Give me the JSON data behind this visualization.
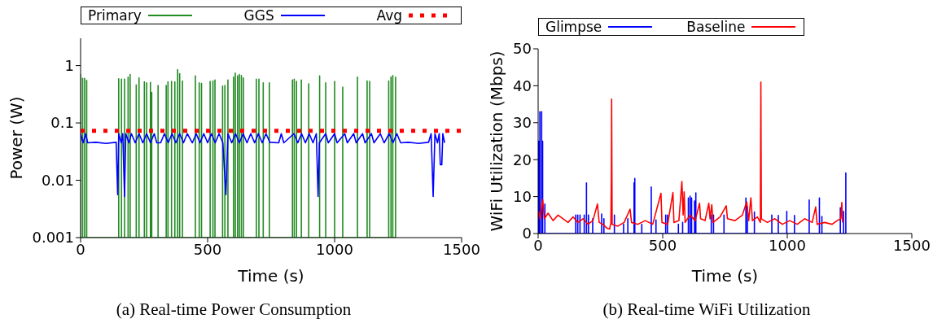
{
  "chart_data": [
    {
      "type": "line",
      "title": "(a) Real-time Power Consumption",
      "xlabel": "Time (s)",
      "ylabel": "Power (W)",
      "log": "y",
      "xlim": [
        0,
        1500
      ],
      "xticks": [
        0,
        500,
        1000,
        1500
      ],
      "ylim": [
        0.001,
        3
      ],
      "yticks": [
        0.001,
        0.01,
        0.1,
        1
      ],
      "legend": "top",
      "ref_lines": [
        {
          "axis": "y",
          "value": 0.073,
          "label": "Avg",
          "color": "#ff0000",
          "line_style": "dotted"
        }
      ],
      "series": [
        {
          "name": "Primary",
          "color": "#228b22",
          "x": [
            0,
            0,
            0,
            8,
            8,
            8,
            16,
            16,
            16,
            24,
            24,
            24,
            150,
            150,
            150,
            161,
            161,
            161,
            173,
            173,
            173,
            187,
            187,
            187,
            195,
            195,
            195,
            219,
            219,
            219,
            230,
            230,
            230,
            251,
            251,
            251,
            260,
            260,
            260,
            275,
            275,
            275,
            280,
            280,
            280,
            305,
            305,
            305,
            337,
            337,
            337,
            344,
            344,
            344,
            358,
            358,
            358,
            371,
            371,
            371,
            382,
            382,
            382,
            390,
            390,
            390,
            401,
            401,
            401,
            452,
            452,
            452,
            467,
            467,
            467,
            476,
            476,
            476,
            510,
            510,
            510,
            521,
            521,
            521,
            529,
            529,
            529,
            559,
            559,
            559,
            568,
            568,
            568,
            580,
            580,
            580,
            602,
            602,
            602,
            609,
            609,
            609,
            618,
            618,
            618,
            625,
            625,
            625,
            633,
            633,
            633,
            641,
            641,
            641,
            692,
            692,
            692,
            702,
            702,
            702,
            719,
            719,
            719,
            743,
            743,
            743,
            834,
            834,
            834,
            841,
            841,
            841,
            850,
            850,
            850,
            869,
            869,
            869,
            898,
            898,
            898,
            941,
            941,
            941,
            965,
            965,
            965,
            1000,
            1000,
            1000,
            1032,
            1032,
            1032,
            1090,
            1090,
            1090,
            1128,
            1128,
            1128,
            1138,
            1138,
            1138,
            1213,
            1213,
            1213,
            1222,
            1222,
            1222,
            1229,
            1229,
            1229,
            1240,
            1240,
            1240
          ],
          "values": [
            0.001,
            0.7,
            0.001,
            0.001,
            0.6,
            0.001,
            0.001,
            0.6,
            0.001,
            0.001,
            0.55,
            0.001,
            0.001,
            0.59,
            0.001,
            0.001,
            0.58,
            0.001,
            0.001,
            0.58,
            0.001,
            0.001,
            0.63,
            0.001,
            0.001,
            0.7,
            0.001,
            0.001,
            0.46,
            0.001,
            0.001,
            0.61,
            0.001,
            0.001,
            0.52,
            0.001,
            0.001,
            0.5,
            0.001,
            0.001,
            0.51,
            0.001,
            0.001,
            0.34,
            0.001,
            0.001,
            0.45,
            0.001,
            0.001,
            0.45,
            0.001,
            0.001,
            0.52,
            0.001,
            0.001,
            0.53,
            0.001,
            0.001,
            0.52,
            0.001,
            0.001,
            0.85,
            0.001,
            0.001,
            0.72,
            0.001,
            0.001,
            0.54,
            0.001,
            0.001,
            0.66,
            0.001,
            0.001,
            0.5,
            0.001,
            0.001,
            0.49,
            0.001,
            0.001,
            0.53,
            0.001,
            0.001,
            0.54,
            0.001,
            0.001,
            0.56,
            0.001,
            0.001,
            0.44,
            0.001,
            0.001,
            0.45,
            0.001,
            0.001,
            0.56,
            0.001,
            0.001,
            0.63,
            0.001,
            0.001,
            0.74,
            0.001,
            0.001,
            0.66,
            0.001,
            0.001,
            0.7,
            0.001,
            0.001,
            0.67,
            0.001,
            0.001,
            0.61,
            0.001,
            0.001,
            0.58,
            0.001,
            0.001,
            0.58,
            0.001,
            0.001,
            0.5,
            0.001,
            0.001,
            0.5,
            0.001,
            0.001,
            0.56,
            0.001,
            0.001,
            0.58,
            0.001,
            0.001,
            0.53,
            0.001,
            0.001,
            0.56,
            0.001,
            0.001,
            0.48,
            0.001,
            0.001,
            0.66,
            0.001,
            0.001,
            0.5,
            0.001,
            0.001,
            0.53,
            0.001,
            0.001,
            0.42,
            0.001,
            0.001,
            0.63,
            0.001,
            0.001,
            0.54,
            0.001,
            0.001,
            0.53,
            0.001,
            0.001,
            0.54,
            0.001,
            0.001,
            0.63,
            0.001,
            0.001,
            0.67,
            0.001,
            0.001,
            0.63,
            0.001
          ]
        },
        {
          "name": "GGS",
          "color": "#0000ff",
          "x": [
            0,
            10,
            20,
            28,
            60,
            100,
            140,
            146,
            150,
            160,
            166,
            173,
            178,
            190,
            200,
            215,
            230,
            245,
            260,
            275,
            290,
            300,
            315,
            330,
            345,
            360,
            375,
            390,
            405,
            420,
            440,
            455,
            470,
            485,
            500,
            515,
            530,
            545,
            560,
            572,
            580,
            595,
            610,
            625,
            640,
            655,
            670,
            685,
            700,
            715,
            730,
            745,
            780,
            790,
            800,
            840,
            855,
            870,
            885,
            900,
            915,
            928,
            935,
            940,
            965,
            975,
            1000,
            1010,
            1040,
            1050,
            1075,
            1085,
            1110,
            1120,
            1145,
            1155,
            1180,
            1195,
            1215,
            1230,
            1245,
            1260,
            1290,
            1330,
            1370,
            1380,
            1388,
            1395,
            1405,
            1412,
            1416,
            1422,
            1426,
            1433
          ],
          "values": [
            0.065,
            0.045,
            0.065,
            0.045,
            0.046,
            0.044,
            0.046,
            0.0056,
            0.065,
            0.045,
            0.065,
            0.0052,
            0.065,
            0.045,
            0.065,
            0.045,
            0.065,
            0.045,
            0.065,
            0.045,
            0.065,
            0.045,
            0.045,
            0.065,
            0.045,
            0.065,
            0.045,
            0.065,
            0.045,
            0.065,
            0.045,
            0.065,
            0.045,
            0.065,
            0.045,
            0.065,
            0.045,
            0.065,
            0.045,
            0.0056,
            0.065,
            0.045,
            0.065,
            0.045,
            0.065,
            0.045,
            0.065,
            0.045,
            0.065,
            0.045,
            0.065,
            0.046,
            0.045,
            0.065,
            0.045,
            0.065,
            0.045,
            0.065,
            0.045,
            0.065,
            0.045,
            0.065,
            0.0052,
            0.045,
            0.065,
            0.045,
            0.065,
            0.045,
            0.065,
            0.045,
            0.065,
            0.045,
            0.065,
            0.045,
            0.065,
            0.045,
            0.065,
            0.045,
            0.065,
            0.045,
            0.065,
            0.045,
            0.046,
            0.044,
            0.046,
            0.065,
            0.0052,
            0.065,
            0.045,
            0.065,
            0.0187,
            0.0187,
            0.065,
            0.045
          ]
        }
      ]
    },
    {
      "type": "line",
      "title": "(b) Real-time WiFi Utilization",
      "xlabel": "Time (s)",
      "ylabel": "WiFi Utilization (Mbps)",
      "xlim": [
        0,
        1500
      ],
      "xticks": [
        0,
        500,
        1000,
        1500
      ],
      "ylim": [
        0,
        50
      ],
      "yticks": [
        0,
        10,
        20,
        30,
        40,
        50
      ],
      "legend": "top left",
      "series": [
        {
          "name": "Glimpse",
          "color": "#0000ff",
          "x": [
            2,
            2,
            2,
            7,
            7,
            7,
            14,
            14,
            14,
            18,
            18,
            18,
            27,
            27,
            27,
            151,
            151,
            151,
            159,
            159,
            159,
            168,
            168,
            168,
            185,
            185,
            185,
            194,
            194,
            194,
            202,
            202,
            202,
            219,
            219,
            219,
            255,
            255,
            255,
            264,
            264,
            264,
            306,
            306,
            306,
            343,
            343,
            343,
            360,
            360,
            360,
            385,
            385,
            385,
            388,
            388,
            388,
            416,
            416,
            416,
            454,
            454,
            454,
            473,
            473,
            473,
            512,
            512,
            512,
            519,
            519,
            519,
            563,
            563,
            563,
            580,
            580,
            580,
            603,
            603,
            603,
            610,
            610,
            610,
            616,
            616,
            616,
            628,
            628,
            628,
            633,
            633,
            633,
            695,
            695,
            695,
            704,
            704,
            704,
            746,
            746,
            746,
            834,
            834,
            834,
            840,
            840,
            840,
            868,
            868,
            868,
            938,
            938,
            938,
            964,
            964,
            964,
            998,
            998,
            998,
            1029,
            1029,
            1029,
            1088,
            1088,
            1088,
            1129,
            1129,
            1129,
            1139,
            1139,
            1139,
            1213,
            1213,
            1213,
            1226,
            1226,
            1226,
            1235,
            1235,
            1235
          ],
          "values": [
            0,
            25,
            0,
            0,
            33,
            0,
            0,
            33,
            0,
            0,
            25,
            0,
            0,
            8,
            0,
            0,
            5,
            0,
            0,
            5,
            0,
            0,
            5,
            0,
            0,
            5,
            0,
            0,
            13.7,
            0,
            0,
            5,
            0,
            0,
            4,
            0,
            0,
            5.3,
            0,
            0,
            4,
            0,
            0,
            5,
            0,
            0,
            2.5,
            0,
            0,
            4,
            0,
            0,
            13.7,
            0,
            0,
            14.9,
            0,
            0,
            2.5,
            0,
            0,
            12.6,
            0,
            0,
            3.7,
            0,
            0,
            5,
            0,
            0,
            5,
            0,
            0,
            2.5,
            0,
            0,
            3,
            0,
            0,
            9.6,
            0,
            0,
            10.1,
            0,
            0,
            9.6,
            0,
            0,
            8.8,
            0,
            0,
            11,
            0,
            0,
            5,
            0,
            0,
            5,
            0,
            0,
            5,
            0,
            0,
            9.6,
            0,
            0,
            7.2,
            0,
            0,
            5.8,
            0,
            0,
            5,
            0,
            0,
            4.9,
            0,
            0,
            6,
            0,
            0,
            4.9,
            0,
            0,
            9.1,
            0,
            0,
            9.6,
            0,
            0,
            4.6,
            0,
            0,
            7,
            0,
            0,
            6,
            0,
            0,
            16.4,
            0
          ]
        },
        {
          "name": "Baseline",
          "color": "#ff0000",
          "x": [
            3,
            8,
            18,
            25,
            40,
            60,
            80,
            100,
            120,
            140,
            160,
            180,
            200,
            220,
            238,
            245,
            260,
            275,
            287,
            292,
            294,
            295,
            297,
            320,
            345,
            369,
            375,
            400,
            430,
            460,
            493,
            497,
            520,
            541,
            545,
            565,
            577,
            582,
            586,
            590,
            610,
            630,
            648,
            652,
            670,
            685,
            690,
            697,
            702,
            730,
            755,
            760,
            790,
            820,
            837,
            845,
            854,
            860,
            880,
            892,
            894,
            896,
            920,
            950,
            980,
            1010,
            1040,
            1070,
            1100,
            1114,
            1120,
            1150,
            1180,
            1200,
            1215,
            1219,
            1222
          ],
          "values": [
            6,
            4,
            9.2,
            4,
            5.5,
            3.5,
            5,
            4,
            3,
            4.5,
            3,
            4,
            2.5,
            3.5,
            8,
            3,
            2.5,
            1.5,
            1.2,
            3,
            15,
            36.4,
            2.5,
            2,
            3,
            6.6,
            3,
            2.5,
            3.5,
            2.5,
            10.9,
            3,
            2.5,
            11.1,
            3,
            3.5,
            14.1,
            5,
            11.3,
            3,
            5,
            3.5,
            8.2,
            4,
            3.5,
            8.2,
            4,
            7.8,
            3,
            4.5,
            7.5,
            4,
            3.5,
            5,
            8.6,
            3.5,
            9.7,
            3.5,
            4.5,
            3,
            41,
            4,
            3,
            4,
            2.5,
            3.5,
            2.5,
            4,
            3,
            7.2,
            2.5,
            3,
            2.5,
            3.5,
            4,
            8.4,
            3
          ]
        }
      ]
    }
  ]
}
